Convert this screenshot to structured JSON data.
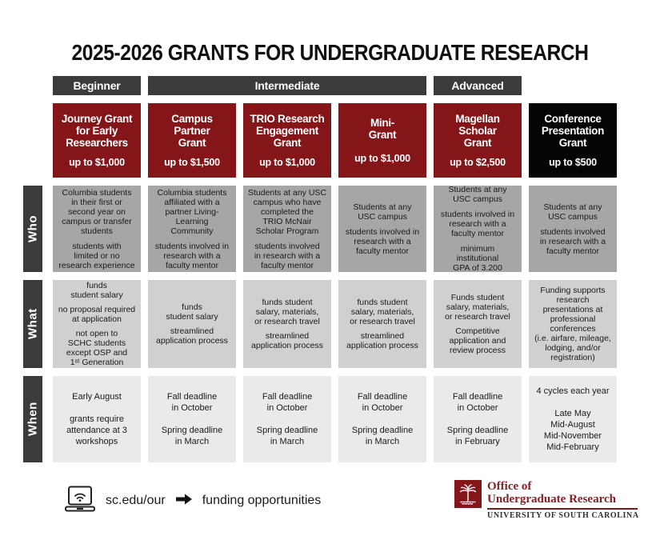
{
  "title": "2025-2026 GRANTS FOR UNDERGRADUATE RESEARCH",
  "levels": {
    "beginner": "Beginner",
    "intermediate": "Intermediate",
    "advanced": "Advanced"
  },
  "row_labels": {
    "who": "Who",
    "what": "What",
    "when": "When"
  },
  "grants": [
    {
      "name": "Journey Grant\nfor Early\nResearchers",
      "amount": "up to $1,000",
      "who": [
        "Columbia students\nin their first or\nsecond year on\ncampus or transfer\nstudents",
        "students with\nlimited or no\nresearch experience"
      ],
      "what": [
        "funds\nstudent salary",
        "no proposal required\nat application",
        "not open to\nSCHC students\nexcept OSP and\n1ˢᵗ Generation"
      ],
      "when": [
        "Early August",
        "grants require\nattendance at 3\nworkshops"
      ]
    },
    {
      "name": "Campus\nPartner\nGrant",
      "amount": "up to $1,500",
      "who": [
        "Columbia students\naffiliated with a\npartner Living-\nLearning\nCommunity",
        "students involved in\nresearch with a\nfaculty mentor"
      ],
      "what": [
        "funds\nstudent salary",
        "streamlined\napplication process"
      ],
      "when": [
        "Fall deadline\nin October",
        "Spring deadline\nin March"
      ]
    },
    {
      "name": "TRIO Research\nEngagement\nGrant",
      "amount": "up to $1,000",
      "who": [
        "Students at any USC\ncampus who have\ncompleted the\nTRIO McNair\nScholar Program",
        "students involved\nin research with a\nfaculty mentor"
      ],
      "what": [
        "funds student\nsalary, materials,\nor research travel",
        "streamlined\napplication process"
      ],
      "when": [
        "Fall deadline\nin October",
        "Spring deadline\nin March"
      ]
    },
    {
      "name": "Mini-\nGrant",
      "amount": "up to $1,000",
      "who": [
        "Students at any\nUSC campus",
        "students involved in\nresearch with a\nfaculty mentor"
      ],
      "what": [
        "funds student\nsalary, materials,\nor research travel",
        "streamlined\napplication process"
      ],
      "when": [
        "Fall deadline\nin October",
        "Spring deadline\nin March"
      ]
    },
    {
      "name": "Magellan\nScholar\nGrant",
      "amount": "up to $2,500",
      "who": [
        "Students at any\nUSC campus",
        "students involved in\nresearch with a\nfaculty mentor",
        "minimum\ninstitutional\nGPA of 3.200"
      ],
      "what": [
        "Funds student\nsalary, materials,\nor research travel",
        "Competitive\napplication and\nreview process"
      ],
      "when": [
        "Fall deadline\nin October",
        "Spring deadline\nin February"
      ]
    },
    {
      "name": "Conference\nPresentation\nGrant",
      "amount": "up to $500",
      "who": [
        "Students at any\nUSC campus",
        "students involved\nin research with a\nfaculty mentor"
      ],
      "what": [
        "Funding supports\nresearch\npresentations at\nprofessional\nconferences\n(i.e. airfare, mileage,\nlodging, and/or\nregistration)"
      ],
      "when": [
        "4 cycles each year",
        "Late May\nMid-August\nMid-November\nMid-February"
      ]
    }
  ],
  "footer": {
    "website": "sc.edu/our",
    "link_text": "funding opportunities"
  },
  "logo": {
    "office_line1": "Office of",
    "office_line2": "Undergraduate Research",
    "university": "UNIVERSITY OF SOUTH CAROLINA"
  },
  "colors": {
    "garnet": "#84161a",
    "header_black": "#050505",
    "charcoal_bar": "#3b3b3b",
    "who_bg": "#a6a6a6",
    "what_bg": "#d0d0d0",
    "when_bg": "#eaeae8"
  }
}
